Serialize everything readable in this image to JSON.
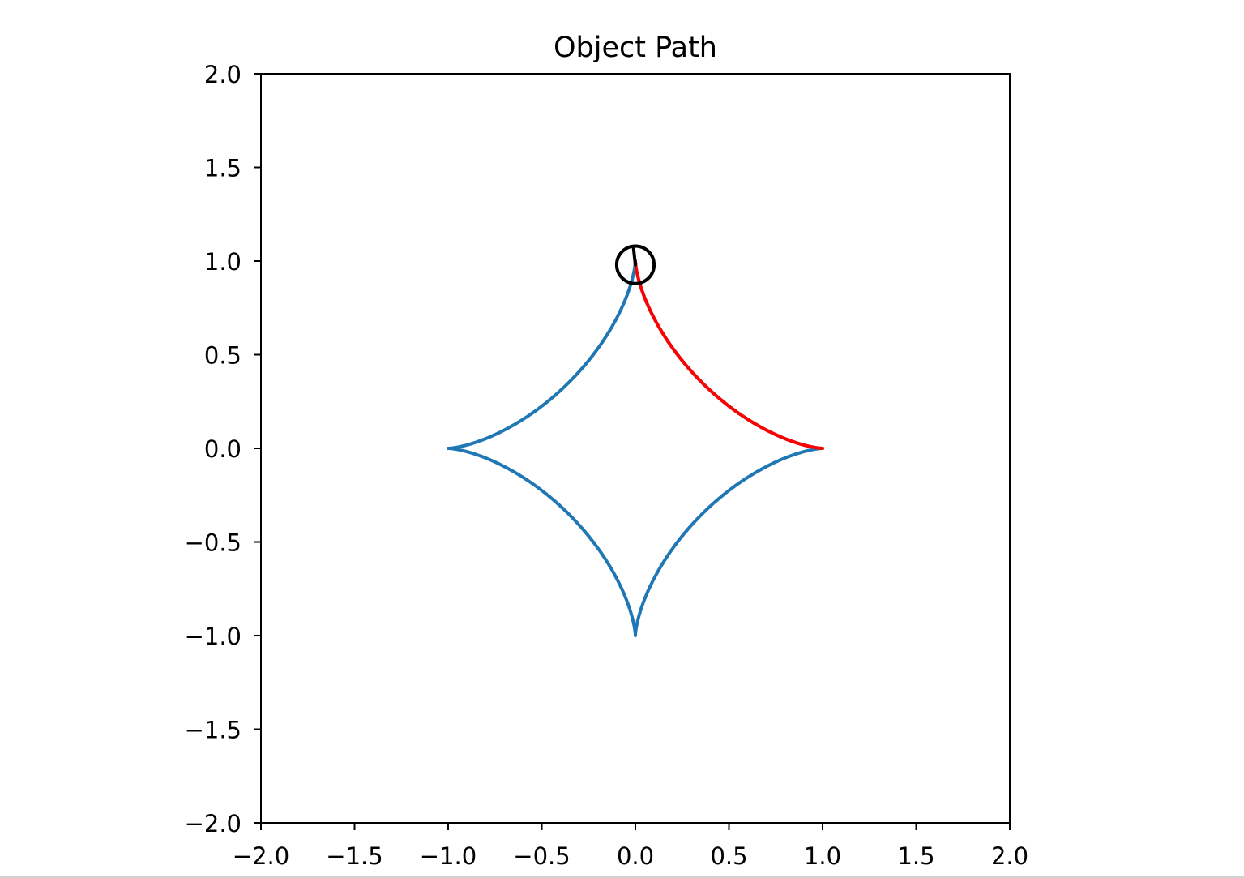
{
  "chart_data": {
    "type": "line",
    "title": "Object Path",
    "xlabel": "",
    "ylabel": "",
    "xlim": [
      -2.0,
      2.0
    ],
    "ylim": [
      -2.0,
      2.0
    ],
    "x_ticks": [
      "−2.0",
      "−1.5",
      "−1.0",
      "−0.5",
      "0.0",
      "0.5",
      "1.0",
      "1.5",
      "2.0"
    ],
    "y_ticks": [
      "2.0",
      "1.5",
      "1.0",
      "0.5",
      "0.0",
      "−0.5",
      "−1.0",
      "−1.5",
      "−2.0"
    ],
    "grid": false,
    "legend": "none",
    "series": [
      {
        "kind": "astroid-curve",
        "equation": "x = cos(t)^3, y = sin(t)^3",
        "t_range": [
          0,
          6.2832
        ],
        "color": "#1f77b4"
      },
      {
        "kind": "traced-path",
        "equation": "x = cos(t)^3, y = sin(t)^3",
        "t_range": [
          0,
          1.56
        ],
        "color": "#ff0000"
      }
    ],
    "marker": {
      "kind": "circle",
      "center": [
        0.0,
        0.98
      ],
      "radius": 0.1,
      "heading_end": [
        -0.01,
        1.07
      ],
      "color": "#000000"
    }
  }
}
